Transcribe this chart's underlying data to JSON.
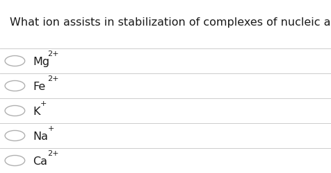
{
  "question": "What ion assists in stabilization of complexes of nucleic acids?",
  "options": [
    {
      "label": "Mg",
      "superscript": "2+"
    },
    {
      "label": "Fe",
      "superscript": "2+"
    },
    {
      "label": "K",
      "superscript": "+"
    },
    {
      "label": "Na",
      "superscript": "+"
    },
    {
      "label": "Ca",
      "superscript": "2+"
    }
  ],
  "bg_color": "#ffffff",
  "text_color": "#1a1a1a",
  "line_color": "#cccccc",
  "circle_color": "#b0b0b0",
  "question_fontsize": 11.5,
  "option_fontsize": 11.5,
  "sup_fontsize": 8.0,
  "fig_width": 4.76,
  "fig_height": 2.5,
  "dpi": 100
}
